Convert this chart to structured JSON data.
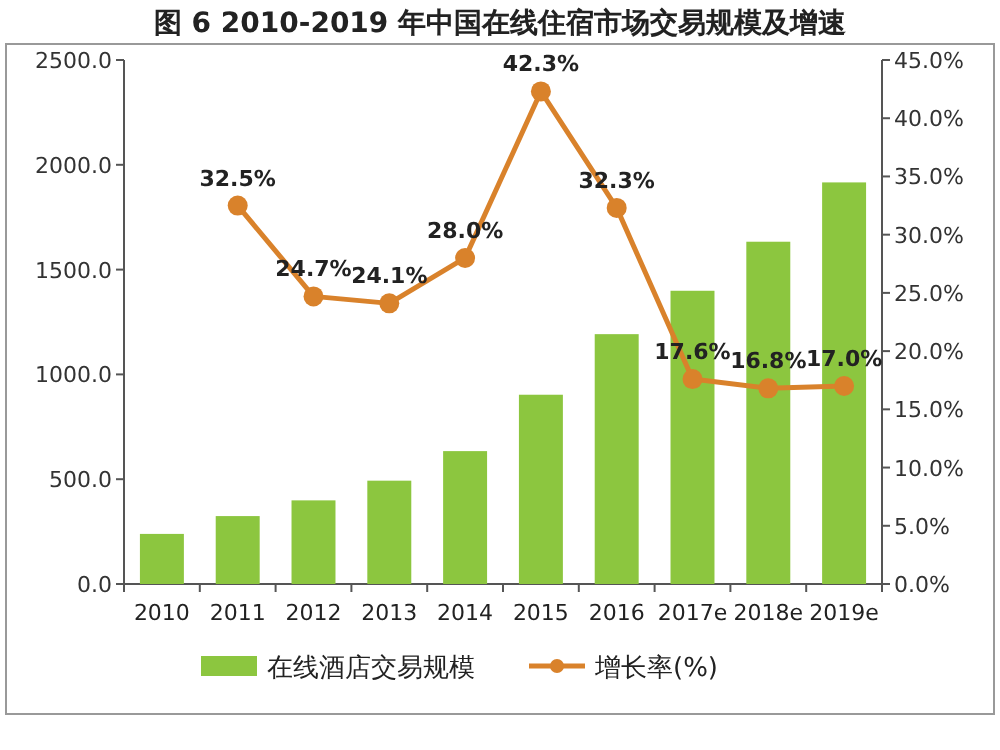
{
  "chart_data": {
    "type": "bar",
    "title": "图 6 2010-2019 年中国在线住宿市场交易规模及增速",
    "categories": [
      "2010",
      "2011",
      "2012",
      "2013",
      "2014",
      "2015",
      "2016",
      "2017e",
      "2018e",
      "2019e"
    ],
    "series": [
      {
        "name": "在线酒店交易规模",
        "color": "#8cc63f",
        "values": [
          239,
          324,
          399,
          493,
          634,
          903,
          1192,
          1399,
          1633,
          1916
        ]
      },
      {
        "name": "增长率(%)",
        "type": "line",
        "axis": "y2",
        "color": "#d9822b",
        "marker": "circle",
        "values": [
          null,
          32.5,
          24.7,
          24.1,
          28.0,
          42.3,
          32.3,
          17.6,
          16.8,
          17.0
        ],
        "value_labels": [
          null,
          "32.5%",
          "24.7%",
          "24.1%",
          "28.0%",
          "42.3%",
          "32.3%",
          "17.6%",
          "16.8%",
          "17.0%"
        ]
      }
    ],
    "ylim": [
      0,
      2500
    ],
    "yticks": [
      {
        "value": 0,
        "label": "0.0"
      },
      {
        "value": 500,
        "label": "500.0"
      },
      {
        "value": 1000,
        "label": "1000.0"
      },
      {
        "value": 1500,
        "label": "1500.0"
      },
      {
        "value": 2000,
        "label": "2000.0"
      },
      {
        "value": 2500,
        "label": "2500.0"
      }
    ],
    "y2lim": [
      0,
      45
    ],
    "y2ticks": [
      {
        "value": 0,
        "label": "0.0%"
      },
      {
        "value": 5,
        "label": "5.0%"
      },
      {
        "value": 10,
        "label": "10.0%"
      },
      {
        "value": 15,
        "label": "15.0%"
      },
      {
        "value": 20,
        "label": "20.0%"
      },
      {
        "value": 25,
        "label": "25.0%"
      },
      {
        "value": 30,
        "label": "30.0%"
      },
      {
        "value": 35,
        "label": "35.0%"
      },
      {
        "value": 40,
        "label": "40.0%"
      },
      {
        "value": 45,
        "label": "45.0%"
      }
    ],
    "grid": false,
    "legend": "bottom"
  }
}
